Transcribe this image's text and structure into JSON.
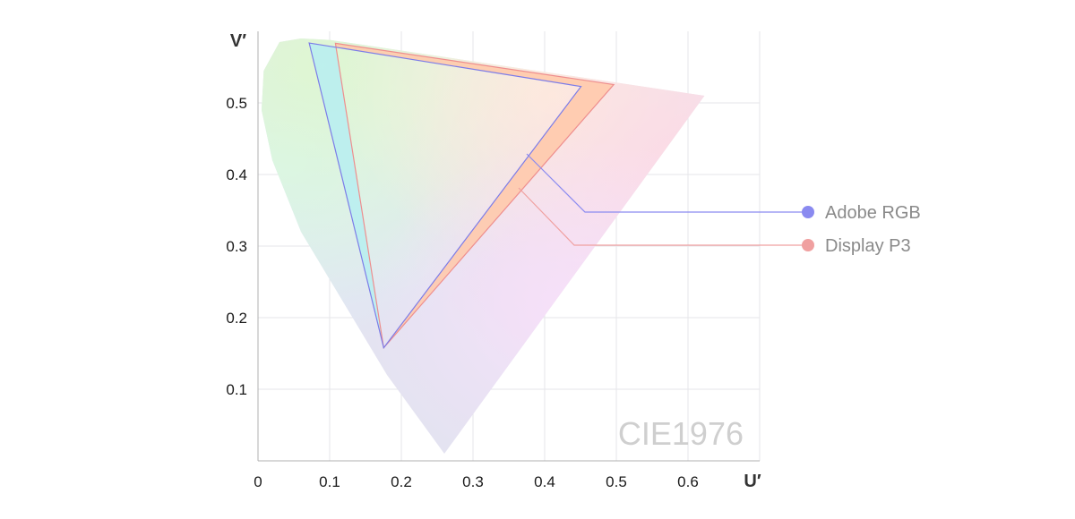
{
  "chart_data": {
    "type": "scatter",
    "watermark": "CIE1976",
    "xlabel": "U′",
    "ylabel": "V′",
    "xlim": [
      0,
      0.7
    ],
    "ylim": [
      0,
      0.6
    ],
    "x_ticks": [
      "0",
      "0.1",
      "0.2",
      "0.3",
      "0.4",
      "0.5",
      "0.6"
    ],
    "y_ticks": [
      "0.1",
      "0.2",
      "0.3",
      "0.4",
      "0.5"
    ],
    "grid": true,
    "legend_position": "right",
    "spectral_locus": [
      [
        0.26,
        0.01
      ],
      [
        0.18,
        0.12
      ],
      [
        0.12,
        0.22
      ],
      [
        0.06,
        0.32
      ],
      [
        0.02,
        0.42
      ],
      [
        0.005,
        0.49
      ],
      [
        0.008,
        0.545
      ],
      [
        0.03,
        0.585
      ],
      [
        0.06,
        0.59
      ],
      [
        0.1,
        0.588
      ],
      [
        0.623,
        0.51
      ]
    ],
    "series": [
      {
        "name": "Adobe RGB",
        "color": "#8a8af0",
        "points": [
          [
            0.0714,
            0.5837
          ],
          [
            0.4507,
            0.5229
          ],
          [
            0.1754,
            0.1579
          ]
        ]
      },
      {
        "name": "Display P3",
        "color": "#f0a0a0",
        "points": [
          [
            0.108,
            0.5833
          ],
          [
            0.4964,
            0.5256
          ],
          [
            0.1754,
            0.1579
          ]
        ]
      }
    ]
  }
}
